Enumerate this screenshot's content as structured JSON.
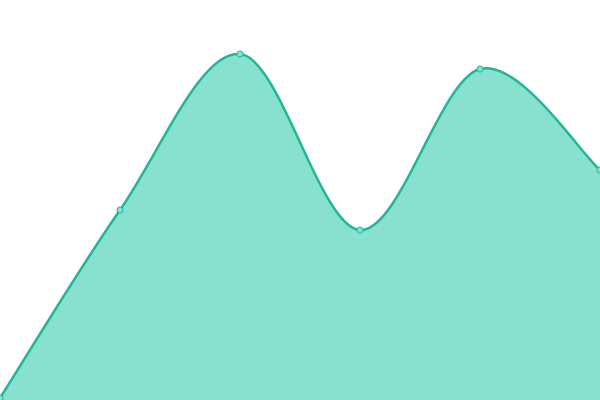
{
  "chart_data": {
    "type": "area",
    "categories": [
      null,
      null,
      null,
      null,
      null,
      null
    ],
    "values": [
      2,
      190,
      346,
      170,
      331,
      230
    ],
    "ylim": [
      0,
      400
    ],
    "color": "#1fb795",
    "fill": "#88e0cf",
    "markers": true
  }
}
